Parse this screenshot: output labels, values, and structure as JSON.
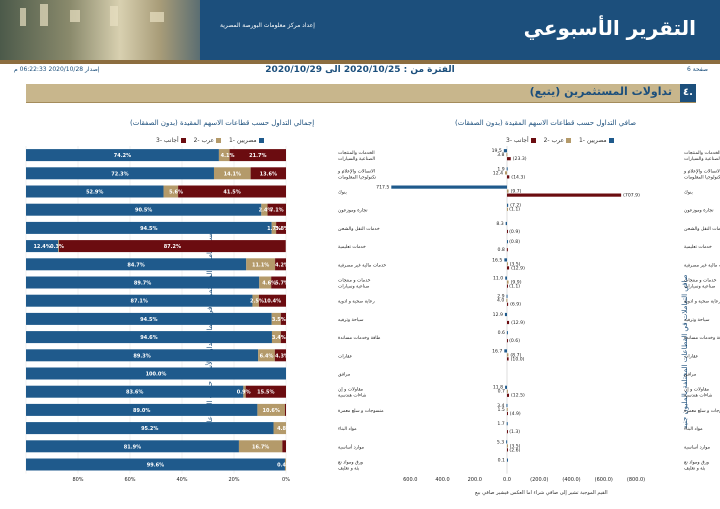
{
  "header": {
    "title": "التقرير الأسبوعي",
    "subtitle": "إعداد مركز معلومات البورصة المصرية",
    "page": "صفحة 6",
    "issue": "إصدار 2020/10/28 06:22:33 م",
    "period": "الفترة من : 2020/10/25 الى 2020/10/29"
  },
  "section": {
    "number": "٤.",
    "title": "تداولات المستثمرين (يتبع)"
  },
  "sectors": [
    "الخدمات والمنتجات الصناعية والسيارات",
    "الاتصالات والإعلام وتكنولوجيا المعلومات",
    "بنوك",
    "تجارة وموزعون",
    "خدمات النقل والشحن",
    "خدمات تعليمية",
    "خدمات مالية غير مصرفية",
    "خدمات و منتجات صناعية وسيارات",
    "رعاية صحية و ادوية",
    "سياحة وترفيه",
    "طاقة وخدمات مساندة",
    "عقارات",
    "مرافق",
    "مقاولات و إنشاءات هندسية",
    "منسوجات و سلع معمرة",
    "مواد البناء",
    "موارد أساسية",
    "ورق ومواد تعبئة و تغليف"
  ],
  "colors": {
    "egyptian": "#1f5a8c",
    "arab": "#b49a6a",
    "foreign": "#6b0c10"
  },
  "chart_data": [
    {
      "type": "bar",
      "title": "صافي التداول حسب قطاعات الاسهم المقيدة (بدون الصفقات)",
      "legend": [
        "مصريين -1",
        "عرب -2",
        "أجانب -3"
      ],
      "yaxis_label": "صافي التعاملات في القطاعات المختلفة بالمليون جنيه",
      "xaxis_note": "القيم الموجبة تشير إلى صافي شراء اما العكس فيشير صافي بيع",
      "xlim": [
        -800,
        800
      ],
      "xticks": [
        "(800.0)",
        "(600.0)",
        "(400.0)",
        "(200.0)",
        "0.0",
        "200.0",
        "400.0",
        "600.0"
      ],
      "series": [
        {
          "name": "مصريين",
          "values": [
            19.5,
            1.9,
            717.5,
            -7.2,
            8.3,
            -0.8,
            16.5,
            11.0,
            2.9,
            12.9,
            0.6,
            16.7,
            0,
            11.8,
            3.4,
            1.7,
            5.3,
            0.1
          ]
        },
        {
          "name": "عرب",
          "values": [
            3.8,
            12.4,
            -9.7,
            -1.1,
            0,
            0,
            -3.5,
            -9.9,
            4.0,
            0,
            0,
            -8.7,
            0,
            0.7,
            1.5,
            0,
            -3.5,
            0
          ]
        },
        {
          "name": "أجانب",
          "values": [
            -23.3,
            -14.3,
            -707.9,
            0,
            -0.9,
            0.8,
            -12.9,
            -1.1,
            -6.9,
            -12.9,
            -0.6,
            -10.0,
            0,
            -12.5,
            -4.9,
            -1.3,
            -2.6,
            0
          ]
        }
      ],
      "labels": [
        [
          "19.5",
          "3.8",
          "(23.3)"
        ],
        [
          "1.9",
          "12.4",
          "(14.3)"
        ],
        [
          "717.5",
          "(9.7)",
          "(707.9)"
        ],
        [
          "(7.2)",
          "(1.1)",
          ""
        ],
        [
          "8.3",
          "",
          "(0.9)"
        ],
        [
          "(0.8)",
          "",
          "0.8"
        ],
        [
          "16.5",
          "(3.5)",
          "(12.9)"
        ],
        [
          "11.0",
          "(9.9)",
          "(1.1)"
        ],
        [
          "2.9",
          "4.0",
          "(6.9)"
        ],
        [
          "12.9",
          "",
          "(12.9)"
        ],
        [
          "0.6",
          "",
          "(0.6)"
        ],
        [
          "16.7",
          "(8.7)",
          "(10.0)"
        ],
        [
          "",
          "",
          ""
        ],
        [
          "11.8",
          "0.7",
          "(12.5)"
        ],
        [
          "3.4",
          "1.5",
          "(4.9)"
        ],
        [
          "1.7",
          "",
          "(1.3)"
        ],
        [
          "5.3",
          "(3.5)",
          "(2.6)"
        ],
        [
          "0.1",
          "",
          ""
        ]
      ]
    },
    {
      "type": "bar",
      "title": "إجمالي التداول حسب قطاعات الاسهم المقيدة (بدون الصفقات)",
      "legend": [
        "مصريين -1",
        "عرب -2",
        "أجانب -3"
      ],
      "yaxis_label": "نسب تعاملات المستثمرين في إجمالي تداول الأسهم حسب القطاعات",
      "xlim": [
        0,
        100
      ],
      "xticks": [
        "0%",
        "20%",
        "40%",
        "60%",
        "80%"
      ],
      "series": [
        {
          "name": "مصريين",
          "values": [
            74.2,
            72.3,
            52.9,
            90.5,
            94.5,
            12.4,
            84.7,
            89.7,
            87.1,
            94.5,
            94.6,
            89.3,
            100.0,
            83.6,
            89.0,
            95.2,
            81.9,
            99.6
          ]
        },
        {
          "name": "عرب",
          "values": [
            4.1,
            14.1,
            5.6,
            2.4,
            1.7,
            0.3,
            11.1,
            4.6,
            2.5,
            3.5,
            3.4,
            6.4,
            0,
            0.9,
            10.6,
            4.8,
            16.7,
            0.4
          ]
        },
        {
          "name": "أجانب",
          "values": [
            21.7,
            13.6,
            41.5,
            7.1,
            3.8,
            87.2,
            4.2,
            5.7,
            10.4,
            2.0,
            2.0,
            4.3,
            0,
            15.5,
            0.4,
            0,
            1.4,
            0
          ]
        }
      ],
      "labels": [
        [
          "74.2%",
          "4.1%",
          "21.7%"
        ],
        [
          "72.3%",
          "14.1%",
          "13.6%"
        ],
        [
          "52.9%",
          "5.6%",
          "41.5%"
        ],
        [
          "90.5%",
          "2.4%",
          "7.1%"
        ],
        [
          "94.5%",
          "1.7%",
          "3.8%"
        ],
        [
          "12.4%",
          "0.3%",
          "87.2%"
        ],
        [
          "84.7%",
          "11.1%",
          "4.2%"
        ],
        [
          "89.7%",
          "4.6%",
          "5.7%"
        ],
        [
          "87.1%",
          "2.5%",
          "10.4%"
        ],
        [
          "94.5%",
          "3.5%",
          ""
        ],
        [
          "94.6%",
          "3.4%",
          ""
        ],
        [
          "89.3%",
          "6.4%",
          "4.3%"
        ],
        [
          "100.0%",
          "",
          ""
        ],
        [
          "83.6%",
          "0.9%",
          "15.5%"
        ],
        [
          "89.0%",
          "10.6%",
          ""
        ],
        [
          "95.2%",
          "4.8%",
          ""
        ],
        [
          "81.9%",
          "16.7%",
          ""
        ],
        [
          "99.6%",
          "0.4%",
          ""
        ]
      ]
    }
  ]
}
